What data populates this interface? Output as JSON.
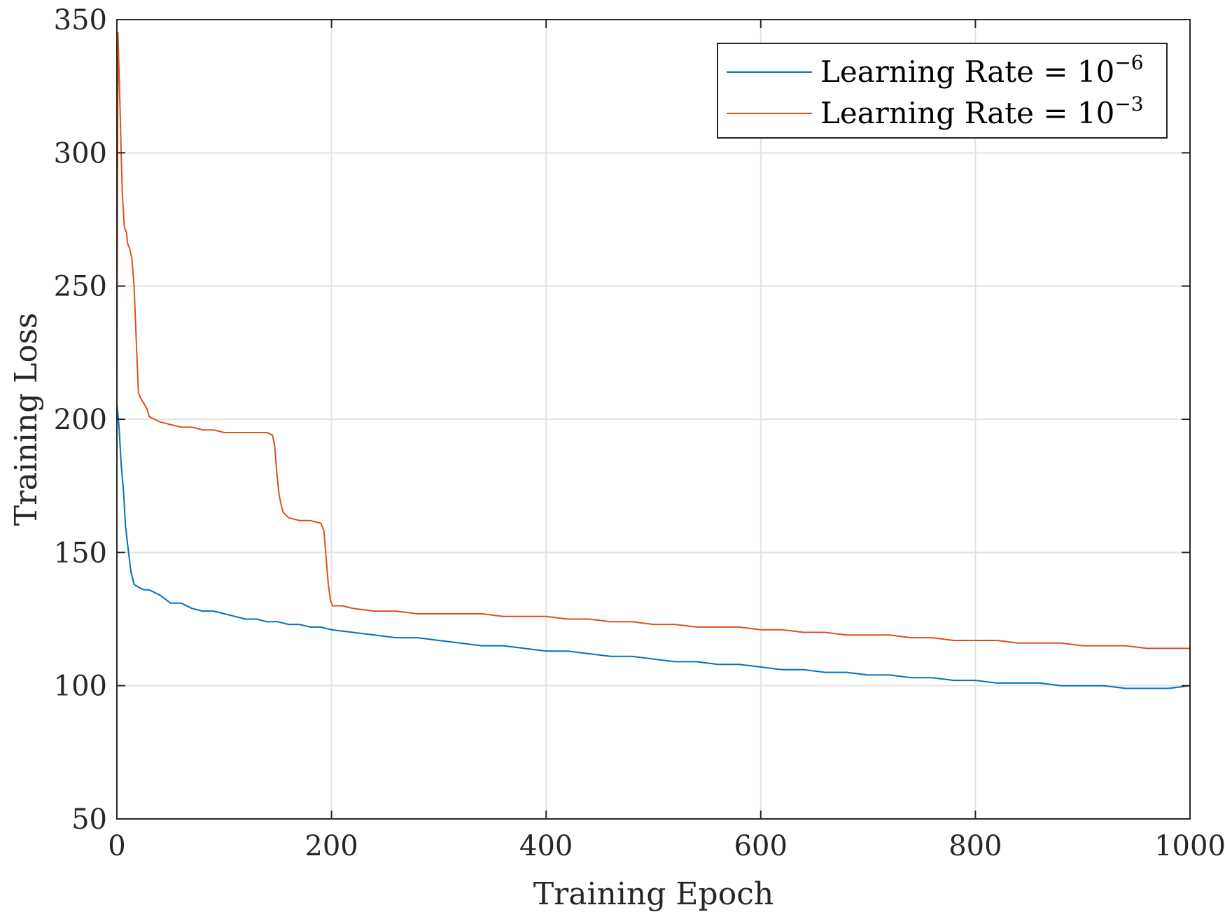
{
  "chart_data": {
    "type": "line",
    "title": "",
    "xlabel": "Training Epoch",
    "ylabel": "Training Loss",
    "xlim": [
      0,
      1000
    ],
    "ylim": [
      50,
      350
    ],
    "xticks": [
      0,
      200,
      400,
      600,
      800,
      1000
    ],
    "xtick_labels": [
      "0",
      "200",
      "400",
      "600",
      "800",
      "1000"
    ],
    "yticks": [
      50,
      100,
      150,
      200,
      250,
      300,
      350
    ],
    "ytick_labels": [
      "50",
      "100",
      "150",
      "200",
      "250",
      "300",
      "350"
    ],
    "grid": true,
    "legend_position": "top-right",
    "series": [
      {
        "name": "Learning Rate = 10^-6",
        "legend_main": "Learning Rate = 10",
        "legend_exp": "−6",
        "color": "#0072BD",
        "x": [
          0,
          2,
          4,
          6,
          8,
          10,
          13,
          16,
          20,
          25,
          30,
          40,
          50,
          60,
          70,
          80,
          90,
          100,
          110,
          120,
          130,
          140,
          150,
          160,
          170,
          180,
          190,
          200,
          220,
          240,
          260,
          280,
          300,
          320,
          340,
          360,
          380,
          400,
          420,
          440,
          460,
          480,
          500,
          520,
          540,
          560,
          580,
          600,
          620,
          640,
          660,
          680,
          700,
          720,
          740,
          760,
          780,
          800,
          820,
          840,
          860,
          880,
          900,
          920,
          940,
          960,
          980,
          1000
        ],
        "y": [
          206,
          197,
          183,
          174,
          160,
          153,
          143,
          138,
          137,
          136,
          136,
          134,
          131,
          131,
          129,
          128,
          128,
          127,
          126,
          125,
          125,
          124,
          124,
          123,
          123,
          122,
          122,
          121,
          120,
          119,
          118,
          118,
          117,
          116,
          115,
          115,
          114,
          113,
          113,
          112,
          111,
          111,
          110,
          109,
          109,
          108,
          108,
          107,
          106,
          106,
          105,
          105,
          104,
          104,
          103,
          103,
          102,
          102,
          101,
          101,
          101,
          100,
          100,
          100,
          99,
          99,
          99,
          100
        ]
      },
      {
        "name": "Learning Rate = 10^-3",
        "legend_main": "Learning Rate = 10",
        "legend_exp": "−3",
        "color": "#D95319",
        "x": [
          0,
          1,
          2,
          3,
          4,
          5,
          7,
          9,
          10,
          12,
          14,
          16,
          18,
          20,
          22,
          25,
          28,
          30,
          35,
          40,
          50,
          60,
          70,
          80,
          90,
          100,
          110,
          120,
          130,
          140,
          145,
          147,
          149,
          151,
          153,
          155,
          160,
          170,
          180,
          190,
          193,
          195,
          197,
          199,
          201,
          205,
          210,
          220,
          240,
          260,
          280,
          300,
          320,
          340,
          360,
          380,
          400,
          420,
          440,
          460,
          480,
          500,
          520,
          540,
          560,
          580,
          600,
          620,
          640,
          660,
          680,
          700,
          720,
          740,
          760,
          780,
          800,
          820,
          840,
          860,
          880,
          900,
          920,
          940,
          960,
          980,
          1000
        ],
        "y": [
          205,
          345,
          330,
          316,
          300,
          285,
          272,
          270,
          266,
          264,
          260,
          250,
          230,
          210,
          208,
          206,
          204,
          201,
          200,
          199,
          198,
          197,
          197,
          196,
          196,
          195,
          195,
          195,
          195,
          195,
          194,
          190,
          180,
          172,
          168,
          165,
          163,
          162,
          162,
          161,
          158,
          148,
          138,
          132,
          130,
          130,
          130,
          129,
          128,
          128,
          127,
          127,
          127,
          127,
          126,
          126,
          126,
          125,
          125,
          124,
          124,
          123,
          123,
          122,
          122,
          122,
          121,
          121,
          120,
          120,
          119,
          119,
          119,
          118,
          118,
          117,
          117,
          117,
          116,
          116,
          116,
          115,
          115,
          115,
          114,
          114,
          114
        ]
      }
    ]
  }
}
